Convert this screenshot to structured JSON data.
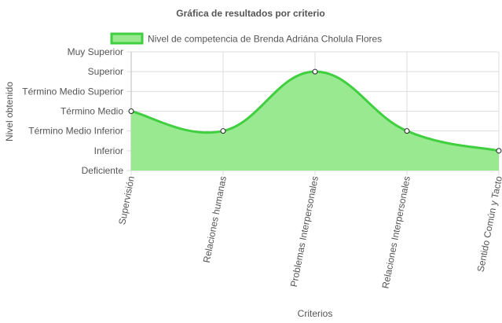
{
  "chart_data": {
    "type": "area",
    "title": "Gráfica de resultados por criterio",
    "xlabel": "Criterios",
    "ylabel": "Nivel obtenido",
    "y_levels": [
      "Deficiente",
      "Inferior",
      "Término Medio Inferior",
      "Término Medio",
      "Término Medio Superior",
      "Superior",
      "Muy Superior"
    ],
    "ylim": [
      0,
      6
    ],
    "categories": [
      "Supervisión",
      "Relaciones humanas",
      "Problemas Interpersonales",
      "Relaciones Interpersonales",
      "Sentido Común y Tacto"
    ],
    "series": [
      {
        "name": "Nivel de competencia de Brenda Adriána Cholula Flores",
        "values": [
          3,
          2,
          5,
          2,
          1
        ],
        "line_color": "#3fcf3f",
        "fill_color": "#98e98f"
      }
    ],
    "legend_position": "top",
    "grid": true
  }
}
